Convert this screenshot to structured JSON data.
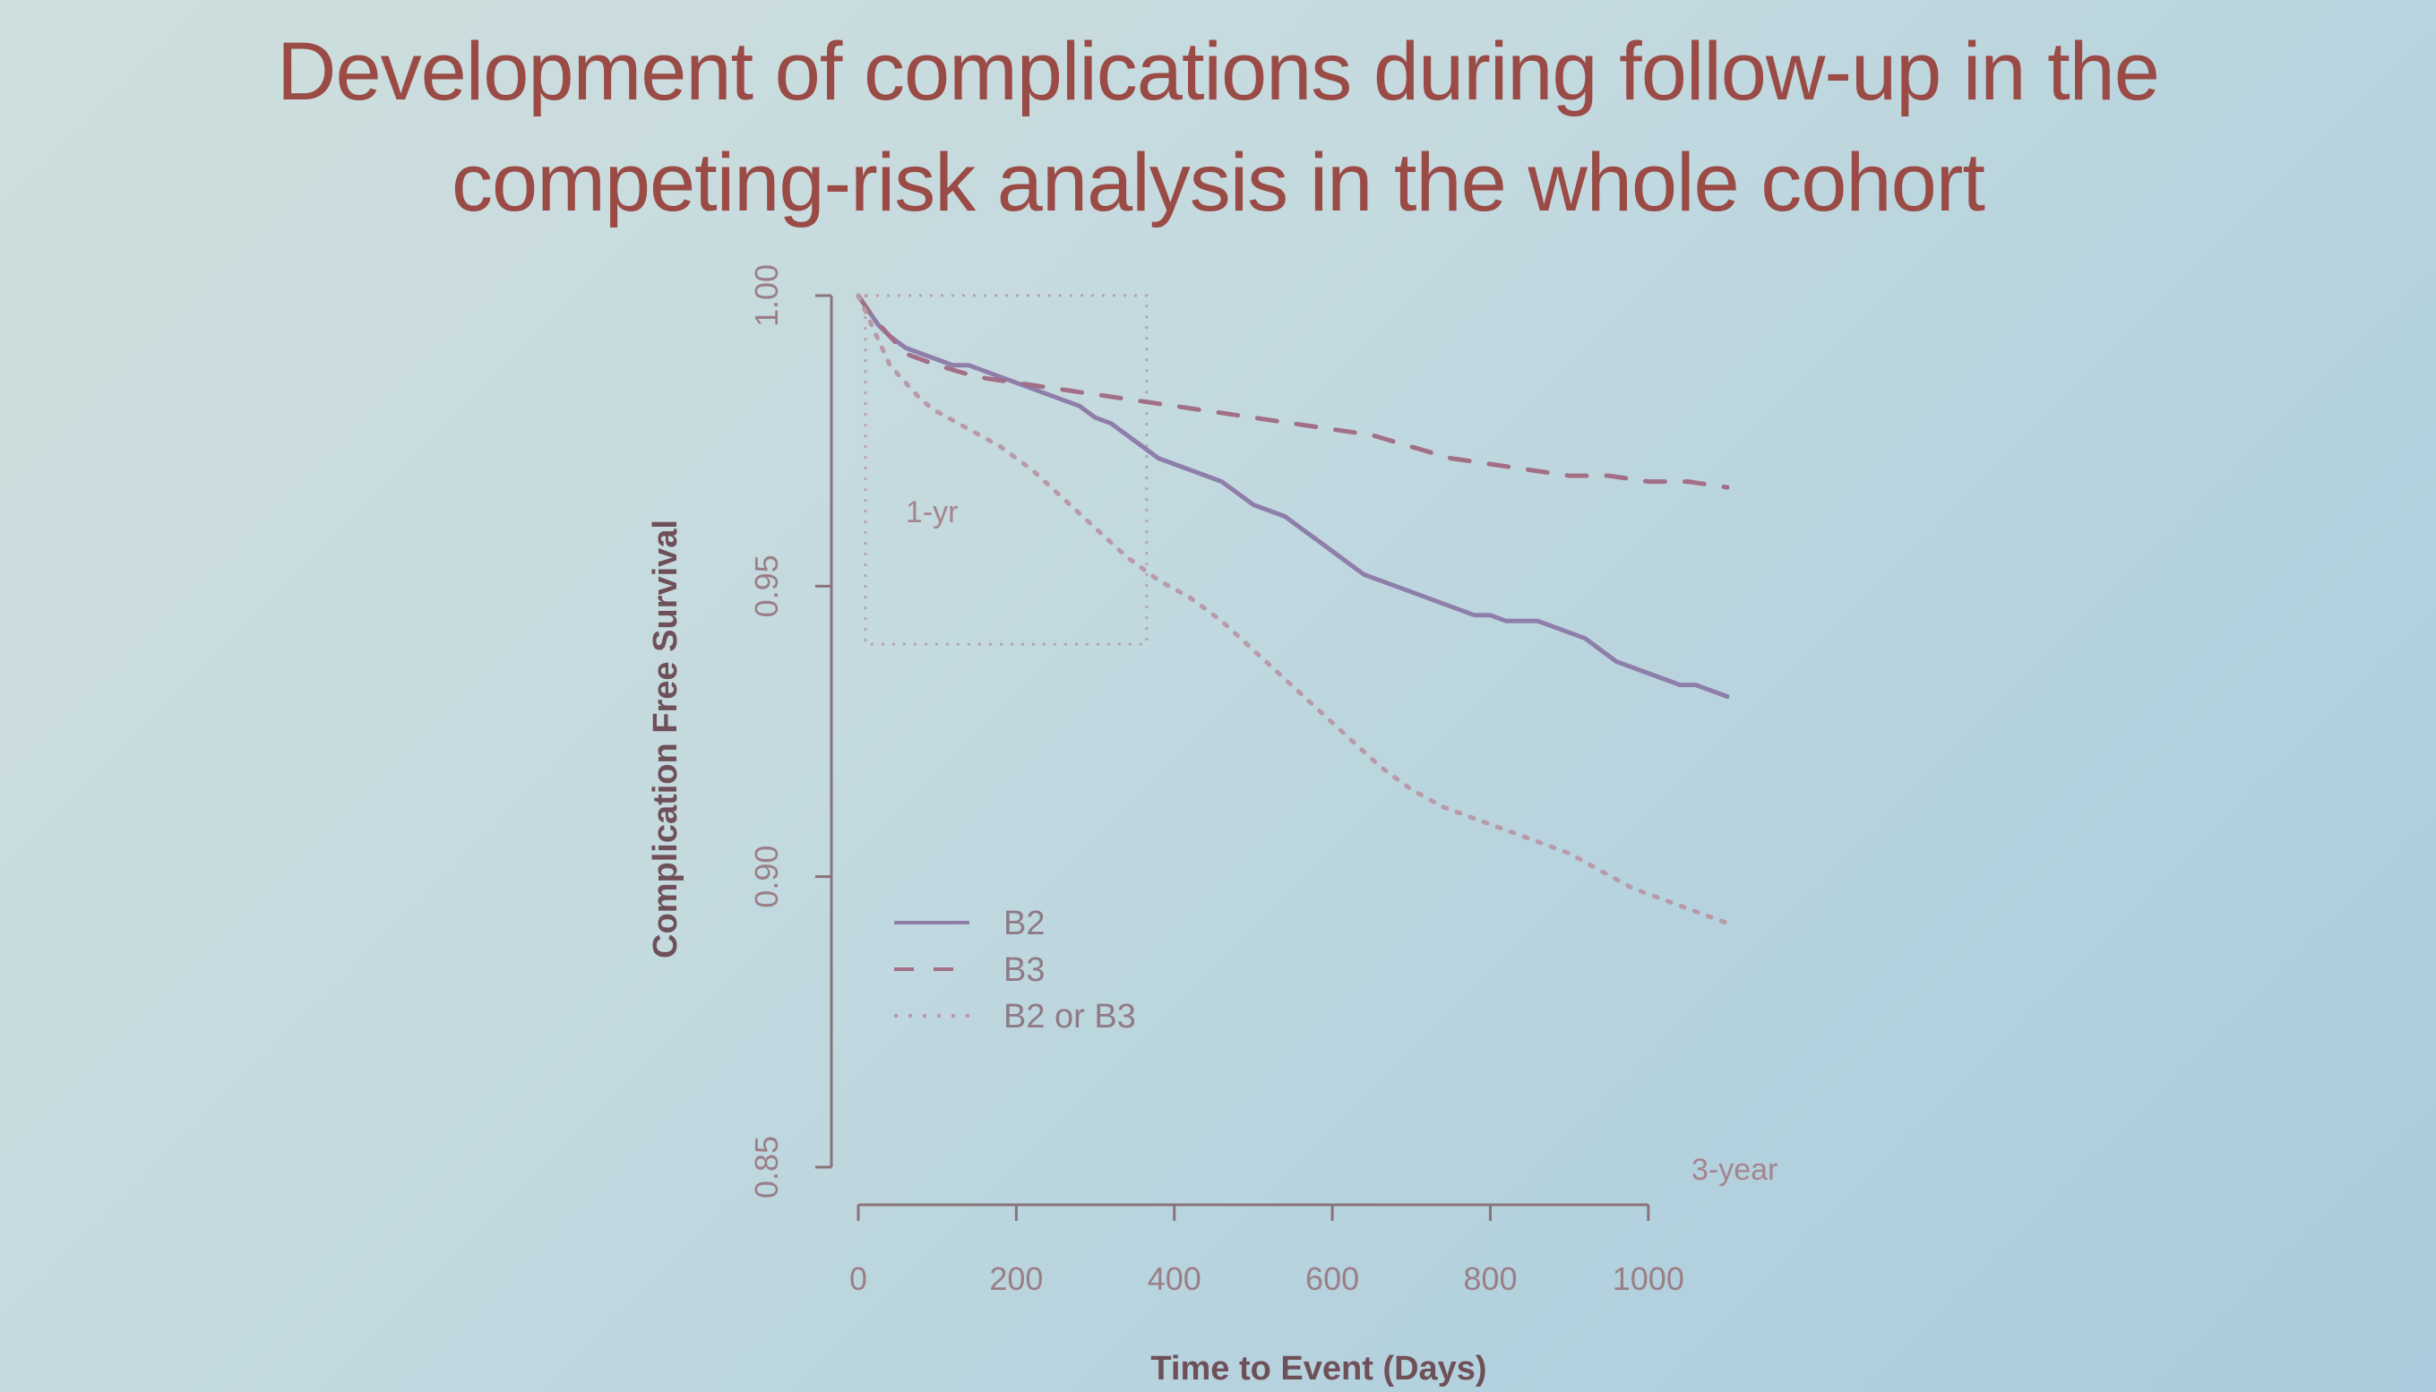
{
  "slide": {
    "title_line1": "Development of complications during follow-up in the",
    "title_line2": "competing-risk analysis in the whole cohort"
  },
  "colors": {
    "title": "#9a4b46",
    "b2": "#8e7ea9",
    "b3": "#a26f86",
    "b2_or_b3": "#b89aa8",
    "axis": "#8a7379"
  },
  "chart_data": {
    "type": "line",
    "title": "",
    "xlabel": "Time to Event (Days)",
    "ylabel": "Complication Free Survival",
    "xlim": [
      0,
      1100
    ],
    "ylim": [
      0.85,
      1.0
    ],
    "x_ticks": [
      0,
      200,
      400,
      600,
      800,
      1000
    ],
    "x_tick_labels": [
      "0",
      "200",
      "400",
      "600",
      "800",
      "1000"
    ],
    "y_ticks": [
      0.85,
      0.9,
      0.95,
      1.0
    ],
    "y_tick_labels": [
      "0.85",
      "0.90",
      "0.95",
      "1.00"
    ],
    "grid": false,
    "legend_position": "bottom-left",
    "annotations": [
      {
        "text": "1-yr",
        "x": 60,
        "y": 0.961
      },
      {
        "text": "3-year",
        "x": 1045,
        "y": 0.852
      }
    ],
    "box_1yr": {
      "x": [
        0,
        365
      ],
      "y": [
        0.94,
        1.0
      ]
    },
    "series": [
      {
        "name": "B2",
        "style": "solid",
        "x": [
          0,
          10,
          25,
          40,
          60,
          80,
          100,
          120,
          140,
          160,
          180,
          200,
          220,
          240,
          260,
          280,
          300,
          320,
          340,
          360,
          380,
          400,
          420,
          440,
          460,
          480,
          500,
          520,
          540,
          560,
          580,
          600,
          620,
          640,
          660,
          680,
          700,
          720,
          740,
          760,
          780,
          800,
          820,
          840,
          860,
          880,
          900,
          920,
          940,
          960,
          980,
          1000,
          1020,
          1040,
          1060,
          1080,
          1100
        ],
        "y": [
          1.0,
          0.998,
          0.995,
          0.993,
          0.991,
          0.99,
          0.989,
          0.988,
          0.988,
          0.987,
          0.986,
          0.985,
          0.984,
          0.983,
          0.982,
          0.981,
          0.979,
          0.978,
          0.976,
          0.974,
          0.972,
          0.971,
          0.97,
          0.969,
          0.968,
          0.966,
          0.964,
          0.963,
          0.962,
          0.96,
          0.958,
          0.956,
          0.954,
          0.952,
          0.951,
          0.95,
          0.949,
          0.948,
          0.947,
          0.946,
          0.945,
          0.945,
          0.944,
          0.944,
          0.944,
          0.943,
          0.942,
          0.941,
          0.939,
          0.937,
          0.936,
          0.935,
          0.934,
          0.933,
          0.933,
          0.932,
          0.931
        ]
      },
      {
        "name": "B3",
        "style": "dashed",
        "x": [
          0,
          20,
          40,
          60,
          100,
          150,
          200,
          250,
          300,
          350,
          400,
          450,
          500,
          550,
          600,
          650,
          700,
          750,
          800,
          850,
          900,
          950,
          1000,
          1050,
          1100
        ],
        "y": [
          1.0,
          0.996,
          0.993,
          0.99,
          0.988,
          0.986,
          0.985,
          0.984,
          0.983,
          0.982,
          0.981,
          0.98,
          0.979,
          0.978,
          0.977,
          0.976,
          0.974,
          0.972,
          0.971,
          0.97,
          0.969,
          0.969,
          0.968,
          0.968,
          0.967
        ]
      },
      {
        "name": "B2 or B3",
        "style": "dotted",
        "x": [
          0,
          20,
          40,
          60,
          80,
          100,
          140,
          180,
          220,
          260,
          300,
          340,
          380,
          420,
          460,
          500,
          540,
          580,
          620,
          660,
          700,
          740,
          780,
          820,
          860,
          900,
          940,
          980,
          1020,
          1060,
          1100
        ],
        "y": [
          1.0,
          0.994,
          0.988,
          0.985,
          0.982,
          0.98,
          0.977,
          0.974,
          0.97,
          0.965,
          0.96,
          0.955,
          0.951,
          0.948,
          0.944,
          0.939,
          0.934,
          0.929,
          0.924,
          0.919,
          0.915,
          0.912,
          0.91,
          0.908,
          0.906,
          0.904,
          0.901,
          0.898,
          0.896,
          0.894,
          0.892
        ]
      }
    ]
  }
}
